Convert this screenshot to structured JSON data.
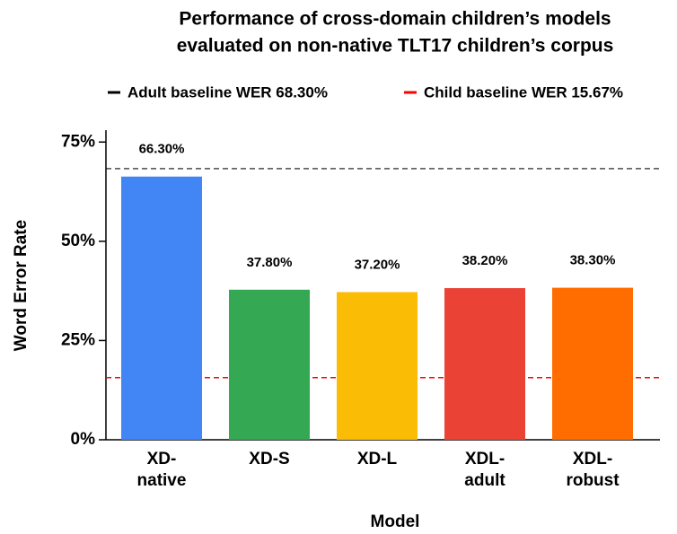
{
  "chart_data": {
    "type": "bar",
    "title": "Performance of cross-domain children’s models",
    "subtitle": "evaluated on non-native TLT17 children’s corpus",
    "x_label": "Model",
    "y_label": "Word Error Rate",
    "categories": [
      "XD-\nnative",
      "XD-S",
      "XD-L",
      "XDL-\nadult",
      "XDL-\nrobust"
    ],
    "values": [
      66.3,
      37.8,
      37.2,
      38.2,
      38.3
    ],
    "value_labels": [
      "66.30%",
      "37.80%",
      "37.20%",
      "38.20%",
      "38.30%"
    ],
    "colors": [
      "#4285f4",
      "#34a853",
      "#fbbc05",
      "#ea4335",
      "#ff6d00"
    ],
    "ylim": [
      0,
      78
    ],
    "yticks": [
      {
        "value": 0,
        "label": "0%"
      },
      {
        "value": 25,
        "label": "25%"
      },
      {
        "value": 50,
        "label": "50%"
      },
      {
        "value": 75,
        "label": "75%"
      }
    ],
    "reference_lines": [
      {
        "name": "Adult baseline WER 68.30%",
        "value": 68.3,
        "color": "#000000"
      },
      {
        "name": "Child baseline WER 15.67%",
        "value": 15.67,
        "color": "#ff0000"
      }
    ]
  }
}
